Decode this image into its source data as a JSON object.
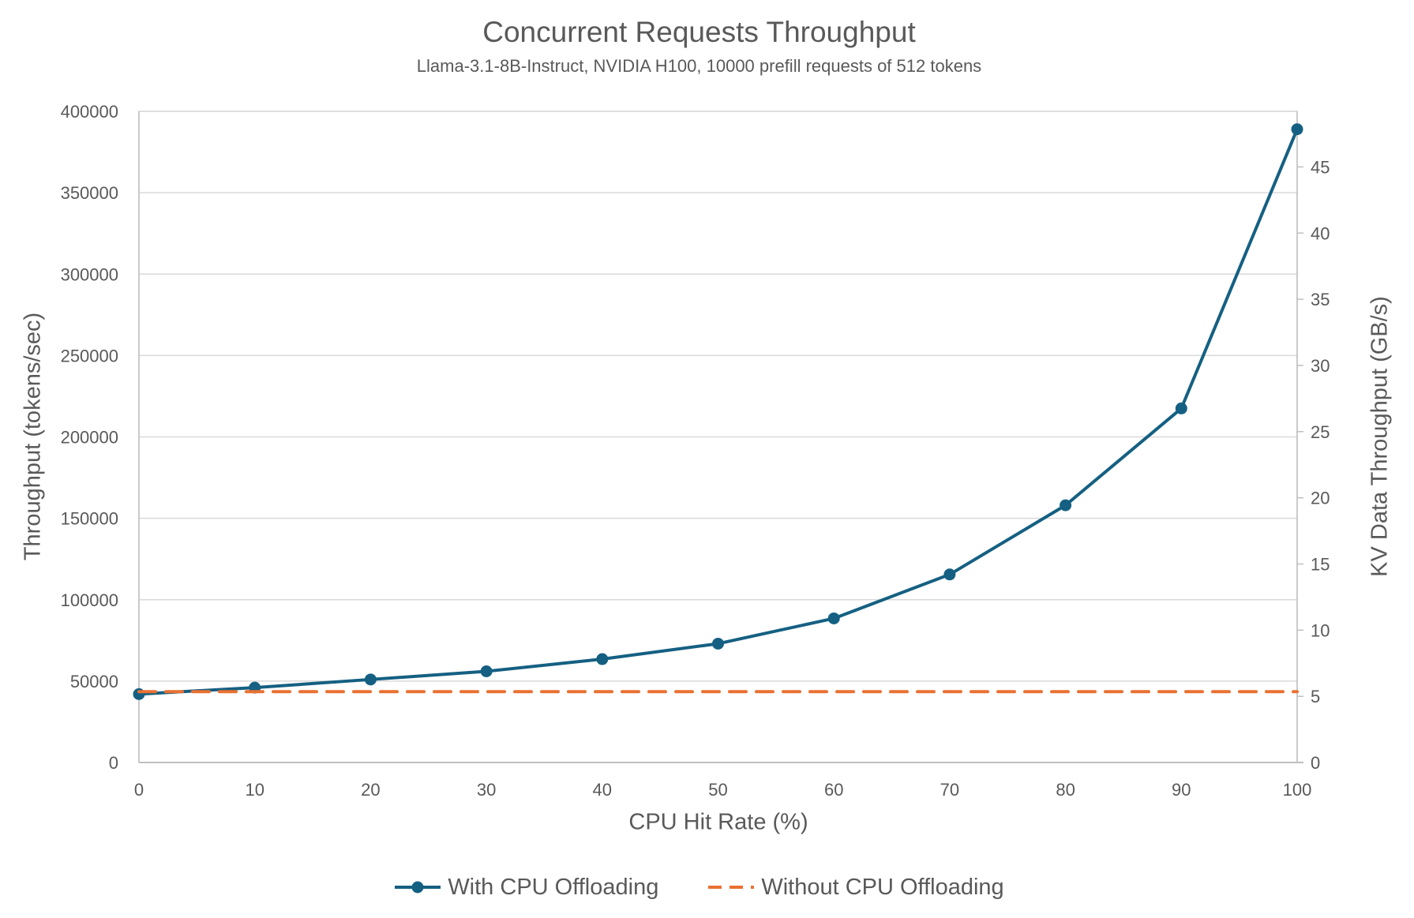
{
  "title": "Concurrent Requests Throughput",
  "subtitle": "Llama-3.1-8B-Instruct, NVIDIA H100, 10000 prefill requests of 512 tokens",
  "colors": {
    "series_with": "#156082",
    "series_without": "#E97132",
    "text": "#595959",
    "gridline": "#D9D9D9",
    "axis_line": "#BFBFBF",
    "background": "#FFFFFF"
  },
  "chart_data": {
    "type": "line",
    "title": "Concurrent Requests Throughput",
    "subtitle": "Llama-3.1-8B-Instruct, NVIDIA H100, 10000 prefill requests of 512 tokens",
    "xlabel": "CPU Hit Rate (%)",
    "ylabel_left": "Throughput (tokens/sec)",
    "ylabel_right": "KV Data Throughput (GB/s)",
    "x": [
      0,
      10,
      20,
      30,
      40,
      50,
      60,
      70,
      80,
      90,
      100
    ],
    "xticks": [
      0,
      10,
      20,
      30,
      40,
      50,
      60,
      70,
      80,
      90,
      100
    ],
    "xlim": [
      0,
      100
    ],
    "ylim_left": [
      0,
      400000
    ],
    "yticks_left": [
      0,
      50000,
      100000,
      150000,
      200000,
      250000,
      300000,
      350000,
      400000
    ],
    "ylim_right": [
      0,
      49.2
    ],
    "yticks_right": [
      0,
      5,
      10,
      15,
      20,
      25,
      30,
      35,
      40,
      45
    ],
    "grid": "horizontal",
    "legend_position": "bottom",
    "series": [
      {
        "name": "With CPU Offloading",
        "color": "#156082",
        "style": "solid",
        "marker": "circle",
        "axis": "left",
        "values": [
          42000,
          46000,
          51000,
          56000,
          63500,
          73000,
          88500,
          115500,
          158000,
          217500,
          389000
        ]
      },
      {
        "name": "Without CPU Offloading",
        "color": "#E97132",
        "style": "dashed",
        "marker": "none",
        "axis": "left",
        "values": [
          43500,
          43500,
          43500,
          43500,
          43500,
          43500,
          43500,
          43500,
          43500,
          43500,
          43500
        ]
      }
    ]
  }
}
